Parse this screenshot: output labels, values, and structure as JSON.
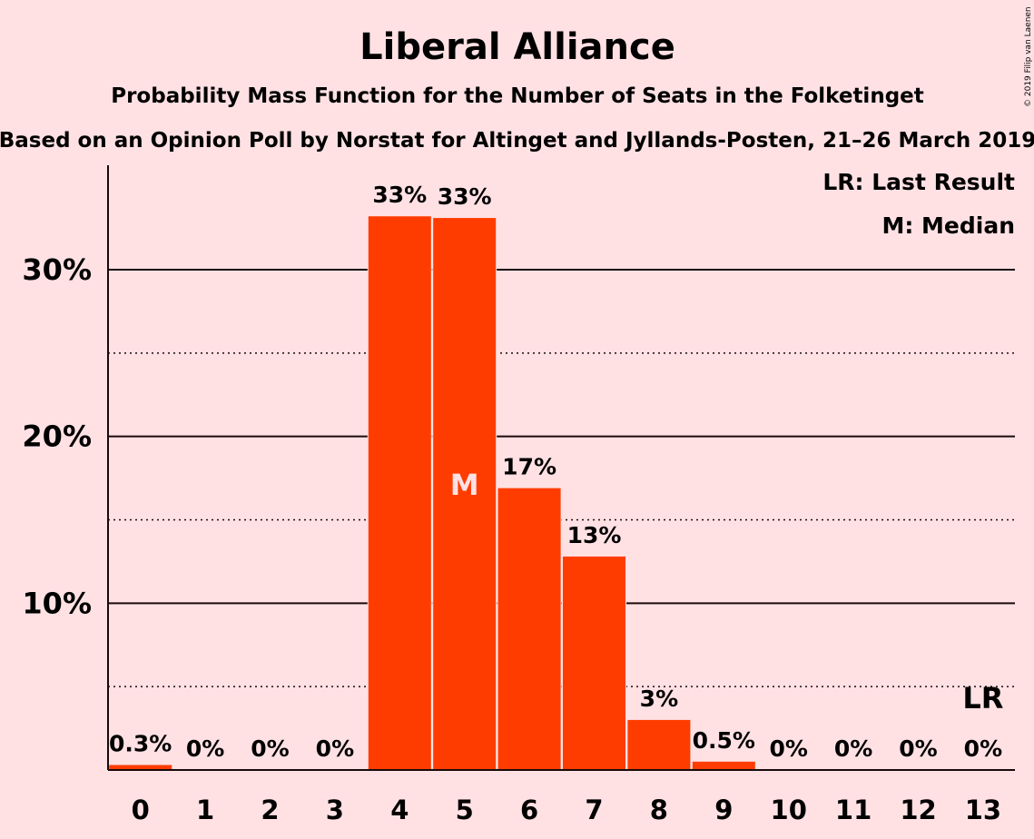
{
  "chart_data": {
    "type": "bar",
    "title": "Liberal Alliance",
    "subtitle": "Probability Mass Function for the Number of Seats in the Folketinget",
    "source_line": "Based on an Opinion Poll by Norstat for Altinget and Jyllands-Posten, 21–26 March 2019",
    "categories": [
      "0",
      "1",
      "2",
      "3",
      "4",
      "5",
      "6",
      "7",
      "8",
      "9",
      "10",
      "11",
      "12",
      "13"
    ],
    "values": [
      0.3,
      0,
      0,
      0,
      33.2,
      33.1,
      16.9,
      12.8,
      3.0,
      0.5,
      0,
      0,
      0,
      0
    ],
    "data_labels": [
      "0.3%",
      "0%",
      "0%",
      "0%",
      "33%",
      "33%",
      "17%",
      "13%",
      "3%",
      "0.5%",
      "0%",
      "0%",
      "0%",
      "0%"
    ],
    "ylim": [
      0,
      36
    ],
    "major_ticks": [
      10,
      20,
      30
    ],
    "major_tick_labels": [
      "10%",
      "20%",
      "30%"
    ],
    "minor_ticks": [
      5,
      15,
      25
    ],
    "xlabel": "",
    "ylabel": "",
    "median_index": 5,
    "median_marker": "M",
    "last_result_index": 13,
    "last_result_marker": "LR",
    "legend": [
      "LR: Last Result",
      "M: Median"
    ],
    "legend_position": "top-right",
    "copyright": "© 2019 Filip van Laenen",
    "colors": {
      "background": "#ffe1e4",
      "bar": "#ff3c00",
      "text": "#1a0a0a",
      "median_text": "#ffe1e4"
    }
  }
}
